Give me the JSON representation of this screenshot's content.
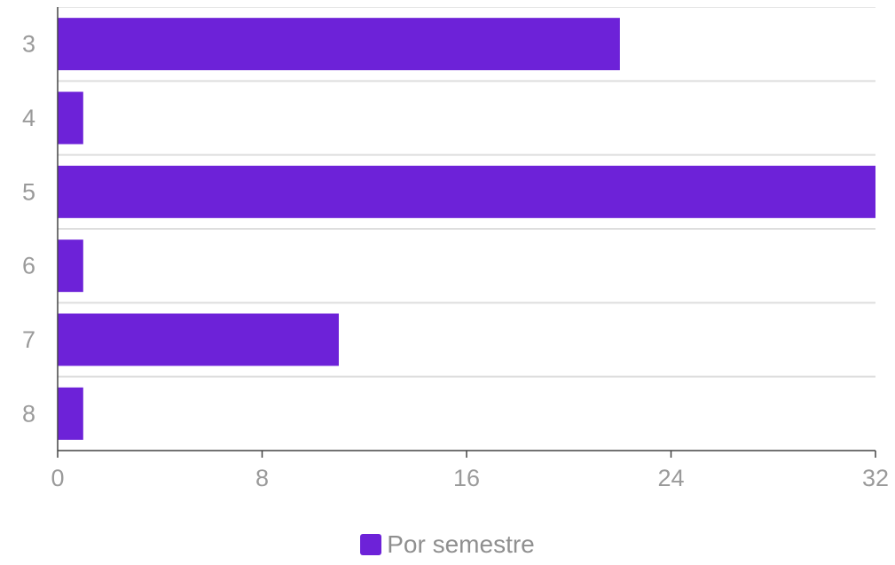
{
  "chart_data": {
    "type": "bar",
    "orientation": "horizontal",
    "categories": [
      "3",
      "4",
      "5",
      "6",
      "7",
      "8"
    ],
    "series": [
      {
        "name": "Por semestre",
        "values": [
          22,
          1,
          32,
          1,
          11,
          1
        ],
        "color": "#6d22d8"
      }
    ],
    "xlim": [
      0,
      32
    ],
    "x_ticks": [
      "0",
      "8",
      "16",
      "24",
      "32"
    ],
    "grid": true,
    "legend_position": "bottom"
  }
}
